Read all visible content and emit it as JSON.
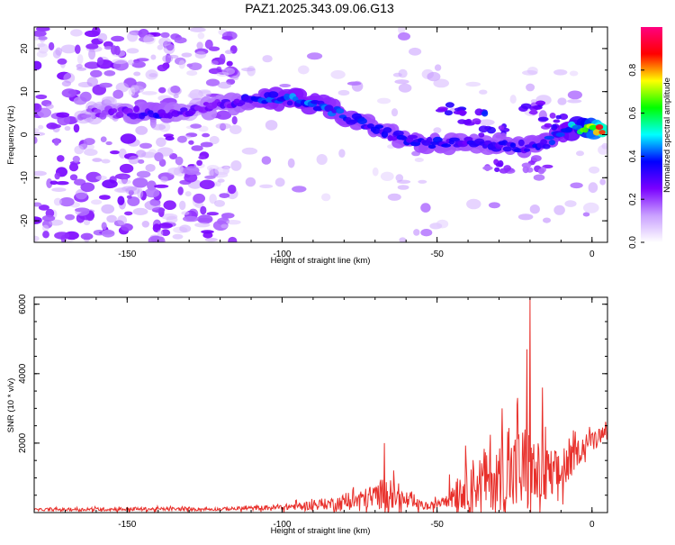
{
  "title": "PAZ1.2025.343.09.06.G13",
  "colors": {
    "snr_line": "#e8302b",
    "axis": "#000000"
  },
  "chart_data": [
    {
      "type": "heatmap",
      "xlabel": "Height of straight line (km)",
      "ylabel": "Frequency (Hz)",
      "xlim": [
        -180,
        5
      ],
      "ylim": [
        -25,
        25
      ],
      "xticks": [
        -150,
        -100,
        -50,
        0
      ],
      "xticklabels": [
        "-150",
        "-100",
        "-50",
        "0"
      ],
      "yticks": [
        -20,
        -10,
        0,
        10,
        20
      ],
      "yticklabels": [
        "-20",
        "-10",
        "0",
        "10",
        "20"
      ],
      "colorbar": {
        "label": "Normalized spectral amplitude",
        "range": [
          0,
          1
        ],
        "ticks": [
          0,
          0.2,
          0.4,
          0.6,
          0.8
        ],
        "ticklabels": [
          "0.0",
          "0.2",
          "0.4",
          "0.6",
          "0.8"
        ],
        "stops": [
          "#ffffff",
          "#c9a0ff",
          "#7a00ff",
          "#0000ff",
          "#00ffff",
          "#00ff00",
          "#ffff00",
          "#ff0000",
          "#ff0080"
        ]
      },
      "ridge": [
        {
          "x": -165,
          "f": 5,
          "a": 0.2
        },
        {
          "x": -150,
          "f": 5,
          "a": 0.28
        },
        {
          "x": -140,
          "f": 5,
          "a": 0.34
        },
        {
          "x": -130,
          "f": 5.5,
          "a": 0.26
        },
        {
          "x": -115,
          "f": 7.5,
          "a": 0.3
        },
        {
          "x": -105,
          "f": 8.5,
          "a": 0.4
        },
        {
          "x": -95,
          "f": 8,
          "a": 0.43
        },
        {
          "x": -85,
          "f": 6,
          "a": 0.4
        },
        {
          "x": -75,
          "f": 3,
          "a": 0.36
        },
        {
          "x": -65,
          "f": 0,
          "a": 0.34
        },
        {
          "x": -55,
          "f": -2,
          "a": 0.36
        },
        {
          "x": -45,
          "f": -2,
          "a": 0.34
        },
        {
          "x": -35,
          "f": -2,
          "a": 0.33
        },
        {
          "x": -25,
          "f": -3,
          "a": 0.34
        },
        {
          "x": -15,
          "f": -2,
          "a": 0.36
        },
        {
          "x": -8,
          "f": 1.5,
          "a": 0.44
        },
        {
          "x": 0,
          "f": 1.5,
          "a": 0.75
        },
        {
          "x": 4,
          "f": 1,
          "a": 1.0
        }
      ],
      "branches": [
        {
          "x": -45,
          "f": 6,
          "a": 0.38
        },
        {
          "x": -38,
          "f": 4,
          "a": 0.36
        },
        {
          "x": -32,
          "f": 1,
          "a": 0.3
        },
        {
          "x": -20,
          "f": 6,
          "a": 0.3
        },
        {
          "x": -12,
          "f": 3,
          "a": 0.3
        },
        {
          "x": -30,
          "f": -7,
          "a": 0.26
        },
        {
          "x": -18,
          "f": -7,
          "a": 0.24
        }
      ],
      "noise_regions": [
        {
          "x0": -180,
          "x1": -115,
          "f0": -25,
          "f1": 25,
          "density": 0.5
        },
        {
          "x0": -115,
          "x1": -60,
          "f0": -15,
          "f1": 20,
          "density": 0.08
        },
        {
          "x0": -62,
          "x1": -48,
          "f0": -25,
          "f1": 25,
          "density": 0.1
        },
        {
          "x0": -45,
          "x1": 5,
          "f0": -20,
          "f1": 15,
          "density": 0.08
        }
      ]
    },
    {
      "type": "line",
      "xlabel": "Height of straight line (km)",
      "ylabel": "SNR (10 * v/v)",
      "xlim": [
        -180,
        5
      ],
      "ylim": [
        0,
        6200
      ],
      "xticks": [
        -150,
        -100,
        -50,
        0
      ],
      "xticklabels": [
        "-150",
        "-100",
        "-50",
        "0"
      ],
      "yticks": [
        2000,
        4000,
        6000
      ],
      "yticklabels": [
        "2000",
        "4000",
        "6000"
      ],
      "envelope": [
        {
          "x": -180,
          "base": 80,
          "amp": 60
        },
        {
          "x": -150,
          "base": 100,
          "amp": 100
        },
        {
          "x": -120,
          "base": 100,
          "amp": 80
        },
        {
          "x": -100,
          "base": 150,
          "amp": 150
        },
        {
          "x": -85,
          "base": 250,
          "amp": 300
        },
        {
          "x": -72,
          "base": 400,
          "amp": 600
        },
        {
          "x": -66,
          "base": 600,
          "amp": 900
        },
        {
          "x": -60,
          "base": 300,
          "amp": 400
        },
        {
          "x": -52,
          "base": 150,
          "amp": 150
        },
        {
          "x": -48,
          "base": 400,
          "amp": 400
        },
        {
          "x": -40,
          "base": 800,
          "amp": 1300
        },
        {
          "x": -30,
          "base": 1000,
          "amp": 1700
        },
        {
          "x": -22,
          "base": 1200,
          "amp": 2600
        },
        {
          "x": -17,
          "base": 1000,
          "amp": 1800
        },
        {
          "x": -10,
          "base": 1100,
          "amp": 1200
        },
        {
          "x": -5,
          "base": 1700,
          "amp": 700
        },
        {
          "x": 0,
          "base": 2150,
          "amp": 400
        },
        {
          "x": 5,
          "base": 2400,
          "amp": 300
        }
      ],
      "spikes": [
        {
          "x": -67,
          "y": 2000
        },
        {
          "x": -29,
          "y": 3000
        },
        {
          "x": -24,
          "y": 3300
        },
        {
          "x": -21,
          "y": 4700
        },
        {
          "x": -20,
          "y": 6200
        },
        {
          "x": -16,
          "y": 3600
        }
      ]
    }
  ]
}
